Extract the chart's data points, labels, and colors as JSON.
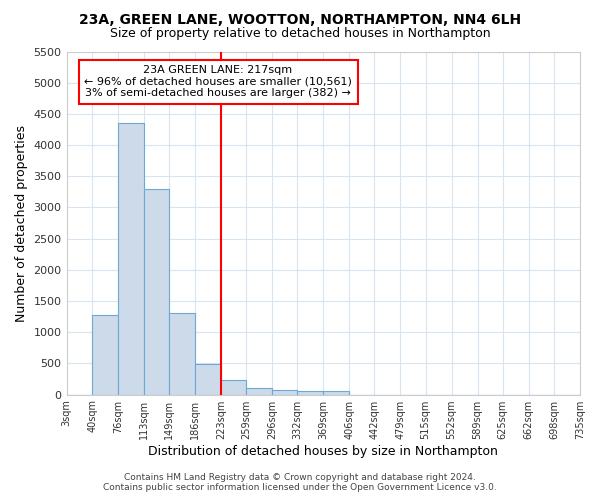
{
  "title": "23A, GREEN LANE, WOOTTON, NORTHAMPTON, NN4 6LH",
  "subtitle": "Size of property relative to detached houses in Northampton",
  "xlabel": "Distribution of detached houses by size in Northampton",
  "ylabel": "Number of detached properties",
  "bin_edges": [
    3,
    40,
    76,
    113,
    149,
    186,
    223,
    259,
    296,
    332,
    369,
    406,
    442,
    479,
    515,
    552,
    589,
    625,
    662,
    698,
    735
  ],
  "bin_labels": [
    "3sqm",
    "40sqm",
    "76sqm",
    "113sqm",
    "149sqm",
    "186sqm",
    "223sqm",
    "259sqm",
    "296sqm",
    "332sqm",
    "369sqm",
    "406sqm",
    "442sqm",
    "479sqm",
    "515sqm",
    "552sqm",
    "589sqm",
    "625sqm",
    "662sqm",
    "698sqm",
    "735sqm"
  ],
  "bar_heights": [
    0,
    1270,
    4350,
    3300,
    1300,
    490,
    230,
    100,
    75,
    50,
    50,
    0,
    0,
    0,
    0,
    0,
    0,
    0,
    0,
    0
  ],
  "bar_color": "#cddaea",
  "bar_edge_color": "#6aaad4",
  "red_line_x": 223,
  "ylim": [
    0,
    5500
  ],
  "yticks": [
    0,
    500,
    1000,
    1500,
    2000,
    2500,
    3000,
    3500,
    4000,
    4500,
    5000,
    5500
  ],
  "annotation_title": "23A GREEN LANE: 217sqm",
  "annotation_line1": "← 96% of detached houses are smaller (10,561)",
  "annotation_line2": "3% of semi-detached houses are larger (382) →",
  "footer_line1": "Contains HM Land Registry data © Crown copyright and database right 2024.",
  "footer_line2": "Contains public sector information licensed under the Open Government Licence v3.0.",
  "bg_color": "#ffffff",
  "plot_bg_color": "#ffffff",
  "grid_color": "#d8e4f0"
}
